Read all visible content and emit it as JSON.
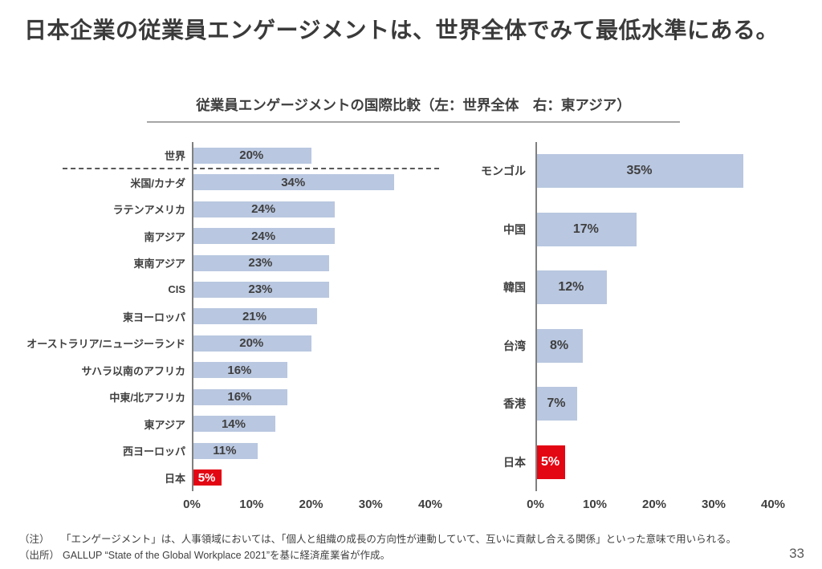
{
  "slide": {
    "title": "日本企業の従業員エンゲージメントは、世界全体でみて最低水準にある。",
    "page_number": "33"
  },
  "figure": {
    "title": "従業員エンゲージメントの国際比較（左：世界全体　右：東アジア）"
  },
  "notes": [
    {
      "label": "（注）",
      "text": "「エンゲージメント」は、人事領域においては、「個人と組織の成長の方向性が連動していて、互いに貢献し合える関係」といった意味で用いられる。"
    },
    {
      "label": "（出所）",
      "text": "GALLUP “State of the Global Workplace 2021”を基に経済産業省が作成。"
    }
  ],
  "colors": {
    "bar": "#b9c7e0",
    "highlight_bar": "#e30613",
    "highlight_value_text": "#ffffff",
    "axis_line": "#808080",
    "title_text": "#3a3a3a"
  },
  "chart_data": [
    {
      "type": "bar",
      "orientation": "horizontal",
      "name": "world",
      "panel_label": "左：世界全体",
      "categories": [
        "世界",
        "米国/カナダ",
        "ラテンアメリカ",
        "南アジア",
        "東南アジア",
        "CIS",
        "東ヨーロッパ",
        "オーストラリア/ニュージーランド",
        "サハラ以南のアフリカ",
        "中東/北アフリカ",
        "東アジア",
        "西ヨーロッパ",
        "日本"
      ],
      "values": [
        20,
        34,
        24,
        24,
        23,
        23,
        21,
        20,
        16,
        16,
        14,
        11,
        5
      ],
      "labels": [
        "20%",
        "34%",
        "24%",
        "24%",
        "23%",
        "23%",
        "21%",
        "20%",
        "16%",
        "16%",
        "14%",
        "11%",
        "5%"
      ],
      "highlight_category": "日本",
      "separator_after": "世界",
      "xlim": [
        0,
        40
      ],
      "x_ticks": [
        "0%",
        "10%",
        "20%",
        "30%",
        "40%"
      ],
      "grid": false,
      "legend": false
    },
    {
      "type": "bar",
      "orientation": "horizontal",
      "name": "east-asia",
      "panel_label": "右：東アジア",
      "categories": [
        "モンゴル",
        "中国",
        "韓国",
        "台湾",
        "香港",
        "日本"
      ],
      "values": [
        35,
        17,
        12,
        8,
        7,
        5
      ],
      "labels": [
        "35%",
        "17%",
        "12%",
        "8%",
        "7%",
        "5%"
      ],
      "highlight_category": "日本",
      "separator_after": null,
      "xlim": [
        0,
        40
      ],
      "x_ticks": [
        "0%",
        "10%",
        "20%",
        "30%",
        "40%"
      ],
      "grid": false,
      "legend": false
    }
  ]
}
